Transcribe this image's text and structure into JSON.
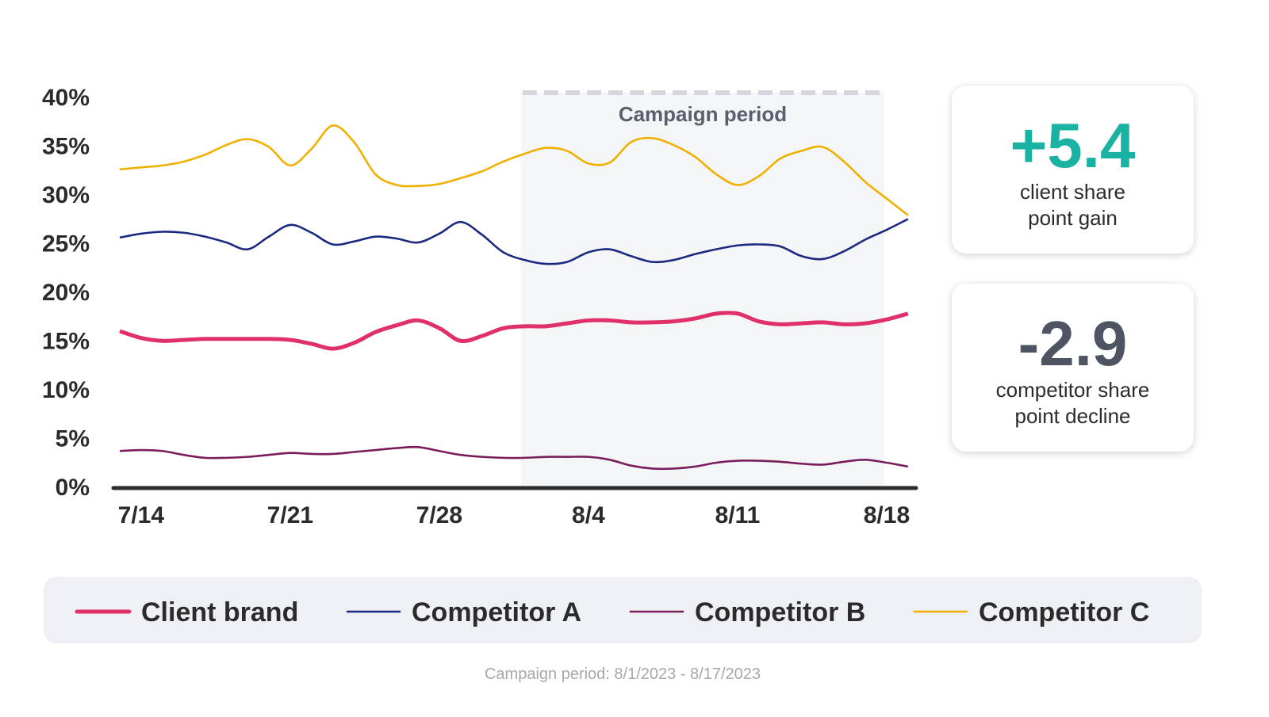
{
  "chart_data": {
    "type": "line",
    "categories": [
      null,
      "7/14",
      null,
      null,
      null,
      null,
      null,
      null,
      "7/21",
      null,
      null,
      null,
      null,
      null,
      null,
      "7/28",
      null,
      null,
      null,
      null,
      null,
      null,
      "8/4",
      null,
      null,
      null,
      null,
      null,
      null,
      "8/11",
      null,
      null,
      null,
      null,
      null,
      null,
      "8/18",
      null
    ],
    "series": [
      {
        "name": "Client brand",
        "color": "#e0306a",
        "values": [
          16.1,
          15.4,
          15.1,
          15.2,
          15.3,
          15.3,
          15.3,
          15.3,
          15.2,
          14.8,
          14.3,
          14.9,
          16.0,
          16.7,
          17.2,
          16.4,
          15.1,
          15.6,
          16.4,
          16.6,
          16.6,
          16.9,
          17.2,
          17.2,
          17.0,
          17.0,
          17.1,
          17.4,
          17.9,
          17.9,
          17.1,
          16.8,
          16.9,
          17.0,
          16.8,
          16.9,
          17.3,
          17.9
        ]
      },
      {
        "name": "Competitor A",
        "color": "#1b2a80",
        "values": [
          25.7,
          26.1,
          26.3,
          26.2,
          25.8,
          25.2,
          24.5,
          25.8,
          27.0,
          26.2,
          25.0,
          25.3,
          25.8,
          25.6,
          25.2,
          26.1,
          27.3,
          26.0,
          24.2,
          23.4,
          23.0,
          23.2,
          24.2,
          24.5,
          23.8,
          23.2,
          23.4,
          24.0,
          24.5,
          24.9,
          25.0,
          24.8,
          23.8,
          23.5,
          24.3,
          25.5,
          26.5,
          27.6
        ]
      },
      {
        "name": "Competitor B",
        "color": "#7a1d5c",
        "values": [
          3.8,
          3.9,
          3.8,
          3.4,
          3.1,
          3.1,
          3.2,
          3.4,
          3.6,
          3.5,
          3.5,
          3.7,
          3.9,
          4.1,
          4.2,
          3.8,
          3.4,
          3.2,
          3.1,
          3.1,
          3.2,
          3.2,
          3.2,
          2.9,
          2.3,
          2.0,
          2.0,
          2.2,
          2.6,
          2.8,
          2.8,
          2.7,
          2.5,
          2.4,
          2.7,
          2.9,
          2.6,
          2.2
        ]
      },
      {
        "name": "Competitor C",
        "color": "#f0b000",
        "values": [
          32.7,
          32.9,
          33.1,
          33.5,
          34.2,
          35.2,
          35.8,
          35.0,
          33.1,
          34.8,
          37.2,
          35.5,
          32.2,
          31.1,
          31.0,
          31.2,
          31.8,
          32.5,
          33.5,
          34.3,
          34.9,
          34.6,
          33.3,
          33.4,
          35.5,
          35.9,
          35.2,
          34.0,
          32.2,
          31.1,
          32.0,
          33.8,
          34.6,
          35.0,
          33.5,
          31.4,
          29.7,
          28.0
        ]
      }
    ],
    "ylim": [
      0,
      40
    ],
    "yticks": [
      {
        "value": 0,
        "label": "0%"
      },
      {
        "value": 5,
        "label": "5%"
      },
      {
        "value": 10,
        "label": "10%"
      },
      {
        "value": 15,
        "label": "15%"
      },
      {
        "value": 20,
        "label": "20%"
      },
      {
        "value": 25,
        "label": "25%"
      },
      {
        "value": 30,
        "label": "30%"
      },
      {
        "value": 35,
        "label": "35%"
      },
      {
        "value": 40,
        "label": "40%"
      }
    ],
    "annotation": "Campaign period",
    "legend": "bottom"
  },
  "stats": [
    {
      "value": "+5.4",
      "color": "#1ab3a3",
      "label": [
        "client share",
        "point gain"
      ]
    },
    {
      "value": "-2.9",
      "color": "#4f5462",
      "label": [
        "competitor share",
        "point decline"
      ]
    }
  ],
  "footnote": "Campaign period: 8/1/2023 - 8/17/2023"
}
